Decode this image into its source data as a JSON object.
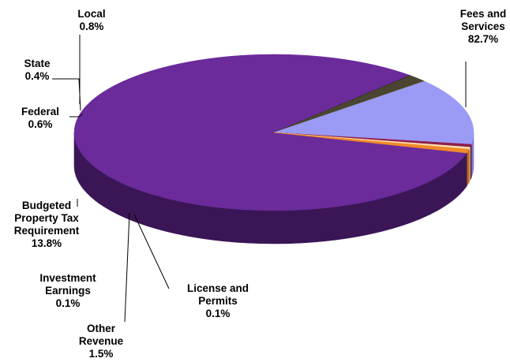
{
  "chart_data": {
    "type": "pie",
    "title": "",
    "slices": [
      {
        "label": "Fees and Services",
        "value": 82.7,
        "value_label": "82.7%",
        "color": "#6b2b9b",
        "side_color": "#3a1656"
      },
      {
        "label": "License and Permits",
        "value": 0.1,
        "value_label": "0.1%",
        "color": "#2e2a1c",
        "side_color": "#1c1a10"
      },
      {
        "label": "Other Revenue",
        "value": 1.5,
        "value_label": "1.5%",
        "color": "#4a4530",
        "side_color": "#2f2c1c"
      },
      {
        "label": "Investment Earnings",
        "value": 0.1,
        "value_label": "0.1%",
        "color": "#6e6846",
        "side_color": "#45412b"
      },
      {
        "label": "Budgeted Property Tax Requirement",
        "value": 13.8,
        "value_label": "13.8%",
        "color": "#9b9bf5",
        "side_color": "#7f7fd6"
      },
      {
        "label": "Federal",
        "value": 0.6,
        "value_label": "0.6%",
        "color": "#8f1f4a",
        "side_color": "#5e1430"
      },
      {
        "label": "State",
        "value": 0.4,
        "value_label": "0.4%",
        "color": "#fde3b5",
        "side_color": "#d9bd8e"
      },
      {
        "label": "Local",
        "value": 0.8,
        "value_label": "0.8%",
        "color": "#f08a2a",
        "side_color": "#b8651c"
      }
    ]
  },
  "labels": [
    {
      "lines": [
        "Fees and",
        "Services",
        "82.7%"
      ]
    },
    {
      "lines": [
        "License and",
        "Permits",
        "0.1%"
      ]
    },
    {
      "lines": [
        "Other",
        "Revenue",
        "1.5%"
      ]
    },
    {
      "lines": [
        "Investment",
        "Earnings",
        "0.1%"
      ]
    },
    {
      "lines": [
        "Budgeted",
        "Property Tax",
        "Requirement",
        "13.8%"
      ]
    },
    {
      "lines": [
        "Federal",
        "0.6%"
      ]
    },
    {
      "lines": [
        "State",
        "0.4%"
      ]
    },
    {
      "lines": [
        "Local",
        "0.8%"
      ]
    }
  ]
}
